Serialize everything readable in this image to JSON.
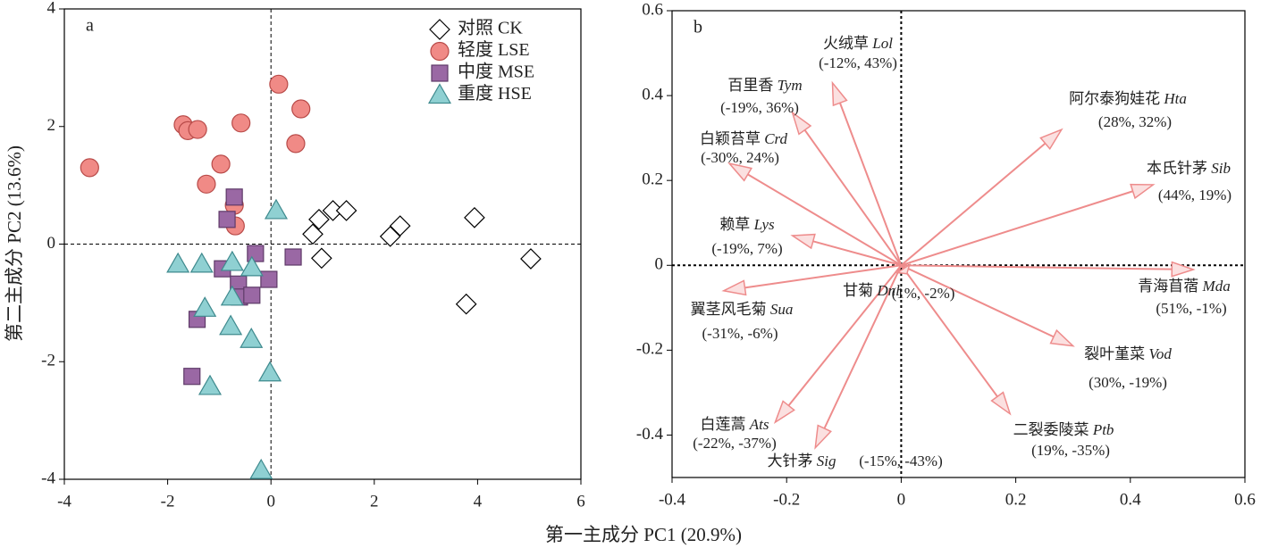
{
  "chart_data": [
    {
      "type": "scatter",
      "panel_label": "a",
      "xlabel": "第一主成分 PC1 (20.9%)",
      "ylabel": "第二主成分 PC2 (13.6%)",
      "xlim": [
        -4,
        6
      ],
      "ylim": [
        -4,
        4
      ],
      "xticks": [
        -4,
        -2,
        0,
        2,
        4,
        6
      ],
      "yticks": [
        -4,
        -2,
        0,
        2,
        4
      ],
      "series": [
        {
          "name": "对照 CK",
          "marker": "diamond",
          "color": "#ffffff",
          "x": [
            1.2,
            1.46,
            0.93,
            0.81,
            0.98,
            2.31,
            2.5,
            3.94,
            5.03,
            3.78
          ],
          "y": [
            0.57,
            0.57,
            0.42,
            0.17,
            -0.24,
            0.13,
            0.31,
            0.45,
            -0.25,
            -1.02
          ]
        },
        {
          "name": "轻度 LSE",
          "marker": "circle",
          "color": "#f08a86",
          "x": [
            -3.51,
            -1.7,
            -1.61,
            -1.42,
            -0.58,
            0.15,
            0.58,
            0.48,
            -0.97,
            -1.25,
            -0.71,
            -0.69
          ],
          "y": [
            1.3,
            2.03,
            1.93,
            1.95,
            2.06,
            2.72,
            2.3,
            1.71,
            1.36,
            1.02,
            0.66,
            0.31
          ]
        },
        {
          "name": "中度 MSE",
          "marker": "square",
          "color": "#9a68a4",
          "x": [
            -0.71,
            -0.85,
            -0.94,
            -0.63,
            -0.61,
            -0.37,
            -0.3,
            -0.04,
            0.43,
            -1.43,
            -1.53
          ],
          "y": [
            0.8,
            0.42,
            -0.42,
            -0.68,
            -0.9,
            -0.87,
            -0.16,
            -0.6,
            -0.22,
            -1.28,
            -2.25
          ]
        },
        {
          "name": "重度 HSE",
          "marker": "triangle",
          "color": "#8fd0d2",
          "x": [
            -1.8,
            -1.34,
            -0.75,
            -0.37,
            0.1,
            -1.28,
            -0.75,
            -0.78,
            -0.38,
            -0.02,
            -1.18,
            -0.19
          ],
          "y": [
            -0.34,
            -0.34,
            -0.31,
            -0.4,
            0.57,
            -1.09,
            -0.9,
            -1.4,
            -1.62,
            -2.19,
            -2.42,
            -3.85
          ]
        }
      ]
    },
    {
      "type": "biplot",
      "panel_label": "b",
      "color": "#ee8c8c",
      "xlim": [
        -0.4,
        0.6
      ],
      "ylim": [
        -0.5,
        0.6
      ],
      "xticks": [
        -0.4,
        -0.2,
        0,
        0.2,
        0.4,
        0.6
      ],
      "yticks": [
        -0.4,
        -0.2,
        0,
        0.2,
        0.4,
        0.6
      ],
      "arrows": [
        {
          "name": "火绒草",
          "code": "Lol",
          "x": -0.12,
          "y": 0.43,
          "value_label": "(-12%, 43%)"
        },
        {
          "name": "百里香",
          "code": "Tym",
          "x": -0.19,
          "y": 0.36,
          "value_label": "(-19%, 36%)"
        },
        {
          "name": "白颖苔草",
          "code": "Crd",
          "x": -0.3,
          "y": 0.24,
          "value_label": "(-30%, 24%)"
        },
        {
          "name": "赖草",
          "code": "Lys",
          "x": -0.19,
          "y": 0.07,
          "value_label": "(-19%, 7%)"
        },
        {
          "name": "翼茎风毛菊",
          "code": "Sua",
          "x": -0.31,
          "y": -0.06,
          "value_label": "(-31%, -6%)"
        },
        {
          "name": "白莲蒿",
          "code": "Ats",
          "x": -0.22,
          "y": -0.37,
          "value_label": "(-22%, -37%)"
        },
        {
          "name": "大针茅",
          "code": "Sig",
          "x": -0.15,
          "y": -0.43,
          "value_label": "(-15%, -43%)"
        },
        {
          "name": "二裂委陵菜",
          "code": "Ptb",
          "x": 0.19,
          "y": -0.35,
          "value_label": "(19%, -35%)"
        },
        {
          "name": "裂叶堇菜",
          "code": "Vod",
          "x": 0.3,
          "y": -0.19,
          "value_label": "(30%, -19%)"
        },
        {
          "name": "青海苜蓿",
          "code": "Mda",
          "x": 0.51,
          "y": -0.01,
          "value_label": "(51%, -1%)"
        },
        {
          "name": "本氏针茅",
          "code": "Sib",
          "x": 0.44,
          "y": 0.19,
          "value_label": "(44%, 19%)"
        },
        {
          "name": "阿尔泰狗娃花",
          "code": "Hta",
          "x": 0.28,
          "y": 0.32,
          "value_label": "(28%, 32%)"
        },
        {
          "name": "甘菊",
          "code": "Dnl",
          "x": 0.01,
          "y": -0.02,
          "value_label": "(1%, -2%)"
        }
      ]
    }
  ]
}
